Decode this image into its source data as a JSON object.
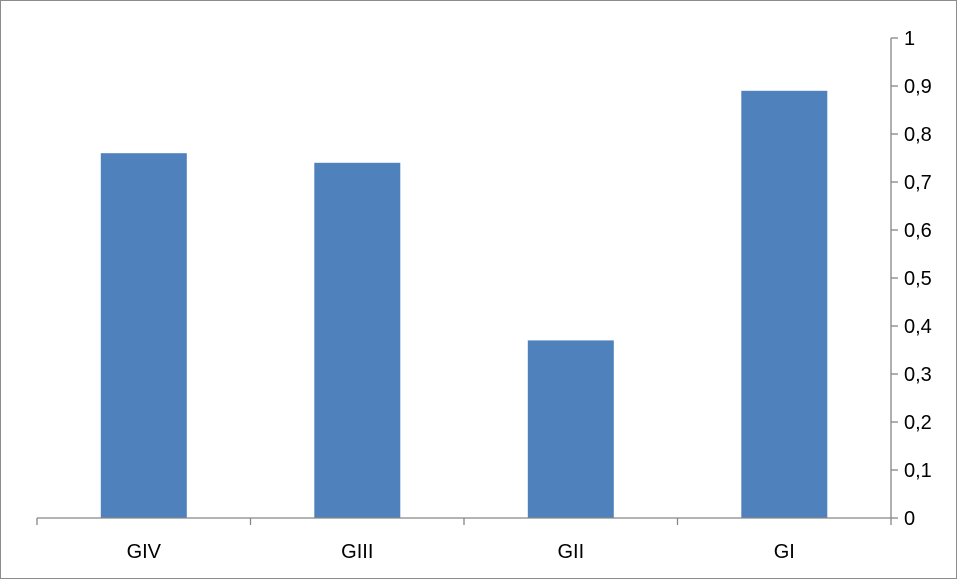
{
  "chart_data": {
    "type": "bar",
    "categories": [
      "GIV",
      "GIII",
      "GII",
      "GI"
    ],
    "values": [
      0.76,
      0.74,
      0.37,
      0.89
    ],
    "title": "",
    "xlabel": "",
    "ylabel": "",
    "ylim": [
      0,
      1
    ],
    "yticks": [
      "0",
      "0,1",
      "0,2",
      "0,3",
      "0,4",
      "0,5",
      "0,6",
      "0,7",
      "0,8",
      "0,9",
      "1"
    ],
    "y_axis_side": "right",
    "grid": false,
    "legend": "none",
    "bar_color": "#4F81BD"
  }
}
